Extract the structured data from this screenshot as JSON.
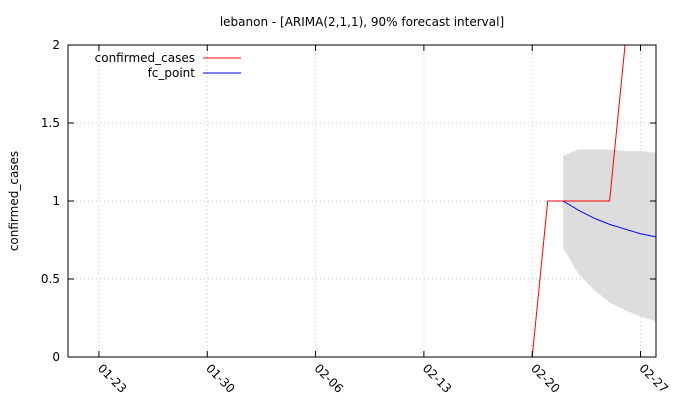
{
  "chart_data": {
    "type": "line",
    "title": "lebanon -  [ARIMA(2,1,1), 90% forecast interval]",
    "xlabel": "",
    "ylabel": "confirmed_cases",
    "ylim": [
      0,
      2
    ],
    "xlim": [
      "2020-01-21",
      "2020-02-28"
    ],
    "grid": true,
    "legend_position": "top-left",
    "y_ticks": [
      "0",
      "0.5",
      "1",
      "1.5",
      "2"
    ],
    "x_ticks": [
      {
        "date": "2020-01-23",
        "label": "01-23"
      },
      {
        "date": "2020-01-30",
        "label": "01-30"
      },
      {
        "date": "2020-02-06",
        "label": "02-06"
      },
      {
        "date": "2020-02-13",
        "label": "02-13"
      },
      {
        "date": "2020-02-20",
        "label": "02-20"
      },
      {
        "date": "2020-02-27",
        "label": "02-27"
      }
    ],
    "series": [
      {
        "name": "confirmed_cases",
        "color": "#ff0000",
        "points": [
          {
            "x": "2020-02-20",
            "y": 0
          },
          {
            "x": "2020-02-21",
            "y": 1
          },
          {
            "x": "2020-02-25",
            "y": 1
          },
          {
            "x": "2020-02-26",
            "y": 2
          }
        ]
      },
      {
        "name": "fc_point",
        "color": "#0000ff",
        "points": [
          {
            "x": "2020-02-22",
            "y": 1.0
          },
          {
            "x": "2020-02-23",
            "y": 0.94
          },
          {
            "x": "2020-02-24",
            "y": 0.89
          },
          {
            "x": "2020-02-25",
            "y": 0.85
          },
          {
            "x": "2020-02-26",
            "y": 0.82
          },
          {
            "x": "2020-02-27",
            "y": 0.79
          },
          {
            "x": "2020-02-28",
            "y": 0.77
          }
        ]
      }
    ],
    "forecast_interval": {
      "color": "#dddddd",
      "points": [
        {
          "x": "2020-02-22",
          "lower": 0.7,
          "upper": 1.29
        },
        {
          "x": "2020-02-23",
          "lower": 0.53,
          "upper": 1.33
        },
        {
          "x": "2020-02-24",
          "lower": 0.43,
          "upper": 1.33
        },
        {
          "x": "2020-02-25",
          "lower": 0.35,
          "upper": 1.33
        },
        {
          "x": "2020-02-26",
          "lower": 0.3,
          "upper": 1.32
        },
        {
          "x": "2020-02-27",
          "lower": 0.26,
          "upper": 1.32
        },
        {
          "x": "2020-02-28",
          "lower": 0.23,
          "upper": 1.31
        }
      ]
    }
  }
}
